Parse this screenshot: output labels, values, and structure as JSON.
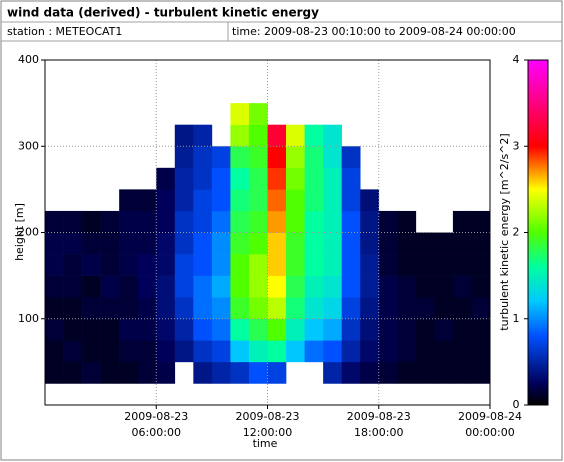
{
  "chart_data": {
    "type": "heatmap",
    "title": "wind data (derived) - turbulent kinetic energy",
    "station": "station : METEOCAT1",
    "time_range": "time: 2009-08-23 00:10:00 to 2009-08-24 00:00:00",
    "xlabel": "time",
    "ylabel": "height [m]",
    "colorbar_label": "turbulent kinetic energy [m^2/s^2]",
    "xlim": [
      "2009-08-23 00:00:00",
      "2009-08-24 00:00:00"
    ],
    "xticks": [
      "2009-08-23 06:00:00",
      "2009-08-23 12:00:00",
      "2009-08-23 18:00:00",
      "2009-08-24 00:00:00"
    ],
    "ylim": [
      0,
      400
    ],
    "yticks": [
      100,
      200,
      300,
      400
    ],
    "zlim": [
      0,
      4
    ],
    "zticks": [
      0,
      1,
      2,
      3,
      4
    ],
    "grid": true,
    "colormap": [
      {
        "value": 0,
        "color": "#000000"
      },
      {
        "value": 0.25,
        "color": "#00005a"
      },
      {
        "value": 0.8,
        "color": "#0050ff"
      },
      {
        "value": 1.2,
        "color": "#00c8ff"
      },
      {
        "value": 1.6,
        "color": "#00ffa0"
      },
      {
        "value": 2.0,
        "color": "#50ff00"
      },
      {
        "value": 2.5,
        "color": "#ffff00"
      },
      {
        "value": 3.0,
        "color": "#ff0000"
      },
      {
        "value": 3.5,
        "color": "#ff0080"
      },
      {
        "value": 4,
        "color": "#ff00ff"
      }
    ],
    "x_bins": [
      "2009-08-23 00:00:00",
      "2009-08-23 01:00:00",
      "2009-08-23 02:00:00",
      "2009-08-23 03:00:00",
      "2009-08-23 04:00:00",
      "2009-08-23 05:00:00",
      "2009-08-23 06:00:00",
      "2009-08-23 07:00:00",
      "2009-08-23 08:00:00",
      "2009-08-23 09:00:00",
      "2009-08-23 10:00:00",
      "2009-08-23 11:00:00",
      "2009-08-23 12:00:00",
      "2009-08-23 13:00:00",
      "2009-08-23 14:00:00",
      "2009-08-23 15:00:00",
      "2009-08-23 16:00:00",
      "2009-08-23 17:00:00",
      "2009-08-23 18:00:00",
      "2009-08-23 19:00:00",
      "2009-08-23 20:00:00",
      "2009-08-23 21:00:00",
      "2009-08-23 22:00:00",
      "2009-08-23 23:00:00",
      "2009-08-24 00:00:00"
    ],
    "y_bins": [
      25,
      50,
      75,
      100,
      125,
      150,
      175,
      200,
      225,
      250,
      275,
      300,
      325,
      350
    ],
    "values": [
      [
        0.1,
        0.1,
        0.15,
        0.1,
        0.15,
        0.2,
        0.2,
        0.15,
        null,
        null,
        null,
        null,
        null
      ],
      [
        0.1,
        0.15,
        0.1,
        0.1,
        0.15,
        0.15,
        0.2,
        0.15,
        null,
        null,
        null,
        null,
        null
      ],
      [
        0.15,
        0.1,
        0.1,
        0.15,
        0.1,
        0.2,
        0.15,
        0.1,
        null,
        null,
        null,
        null,
        null
      ],
      [
        0.1,
        0.1,
        0.1,
        0.15,
        0.2,
        0.15,
        0.15,
        0.15,
        null,
        null,
        null,
        null,
        null
      ],
      [
        0.1,
        0.15,
        0.2,
        0.15,
        0.15,
        0.2,
        0.2,
        0.2,
        0.15,
        null,
        null,
        null,
        null
      ],
      [
        0.15,
        0.15,
        0.2,
        0.2,
        0.25,
        0.25,
        0.2,
        0.2,
        0.15,
        null,
        null,
        null,
        null
      ],
      [
        0.2,
        0.25,
        0.3,
        0.35,
        0.35,
        0.3,
        0.3,
        0.25,
        0.25,
        0.2,
        null,
        null,
        null
      ],
      [
        null,
        0.4,
        0.5,
        0.6,
        0.7,
        0.7,
        0.6,
        0.6,
        0.5,
        0.5,
        0.45,
        0.4,
        null
      ],
      [
        0.4,
        0.6,
        0.8,
        0.9,
        0.9,
        0.8,
        0.8,
        0.7,
        0.7,
        0.6,
        0.6,
        0.5,
        null
      ],
      [
        0.5,
        0.7,
        0.9,
        1.0,
        1.1,
        1.0,
        1.0,
        0.9,
        0.8,
        0.8,
        0.7,
        null,
        null
      ],
      [
        0.6,
        1.2,
        1.6,
        1.9,
        2.0,
        2.0,
        1.9,
        1.8,
        1.7,
        1.6,
        1.8,
        2.2,
        2.4
      ],
      [
        0.8,
        1.5,
        1.8,
        2.1,
        2.2,
        2.2,
        2.0,
        1.9,
        1.8,
        1.8,
        1.9,
        2.0,
        2.1
      ],
      [
        0.7,
        1.6,
        2.0,
        2.3,
        2.5,
        2.6,
        2.6,
        2.7,
        2.8,
        2.9,
        3.0,
        3.2,
        null
      ],
      [
        null,
        1.2,
        1.5,
        1.7,
        1.8,
        1.9,
        1.9,
        2.0,
        2.0,
        2.1,
        2.2,
        2.4,
        null
      ],
      [
        null,
        0.9,
        1.2,
        1.4,
        1.5,
        1.6,
        1.6,
        1.6,
        1.7,
        1.7,
        1.7,
        1.6,
        null
      ],
      [
        0.5,
        0.8,
        1.1,
        1.3,
        1.4,
        1.5,
        1.5,
        1.5,
        1.5,
        1.5,
        1.4,
        1.4,
        null
      ],
      [
        0.3,
        0.5,
        0.6,
        0.7,
        0.8,
        0.8,
        0.8,
        0.8,
        0.7,
        0.7,
        0.6,
        null,
        null
      ],
      [
        0.2,
        0.3,
        0.35,
        0.4,
        0.45,
        0.45,
        0.4,
        0.4,
        0.35,
        null,
        null,
        null,
        null
      ],
      [
        0.15,
        0.2,
        0.2,
        0.2,
        0.2,
        0.15,
        0.15,
        0.15,
        null,
        null,
        null,
        null,
        null
      ],
      [
        0.1,
        0.15,
        0.15,
        0.15,
        0.15,
        0.1,
        0.1,
        0.1,
        null,
        null,
        null,
        null,
        null
      ],
      [
        0.1,
        0.1,
        0.1,
        0.15,
        0.1,
        0.1,
        0.1,
        null,
        null,
        null,
        null,
        null,
        null
      ],
      [
        0.1,
        0.1,
        0.15,
        0.1,
        0.1,
        0.1,
        0.1,
        null,
        null,
        null,
        null,
        null,
        null
      ],
      [
        0.1,
        0.1,
        0.1,
        0.1,
        0.15,
        0.1,
        0.1,
        0.1,
        null,
        null,
        null,
        null,
        null
      ],
      [
        0.1,
        0.1,
        0.1,
        0.15,
        0.1,
        0.1,
        0.1,
        0.1,
        null,
        null,
        null,
        null,
        null
      ]
    ]
  }
}
